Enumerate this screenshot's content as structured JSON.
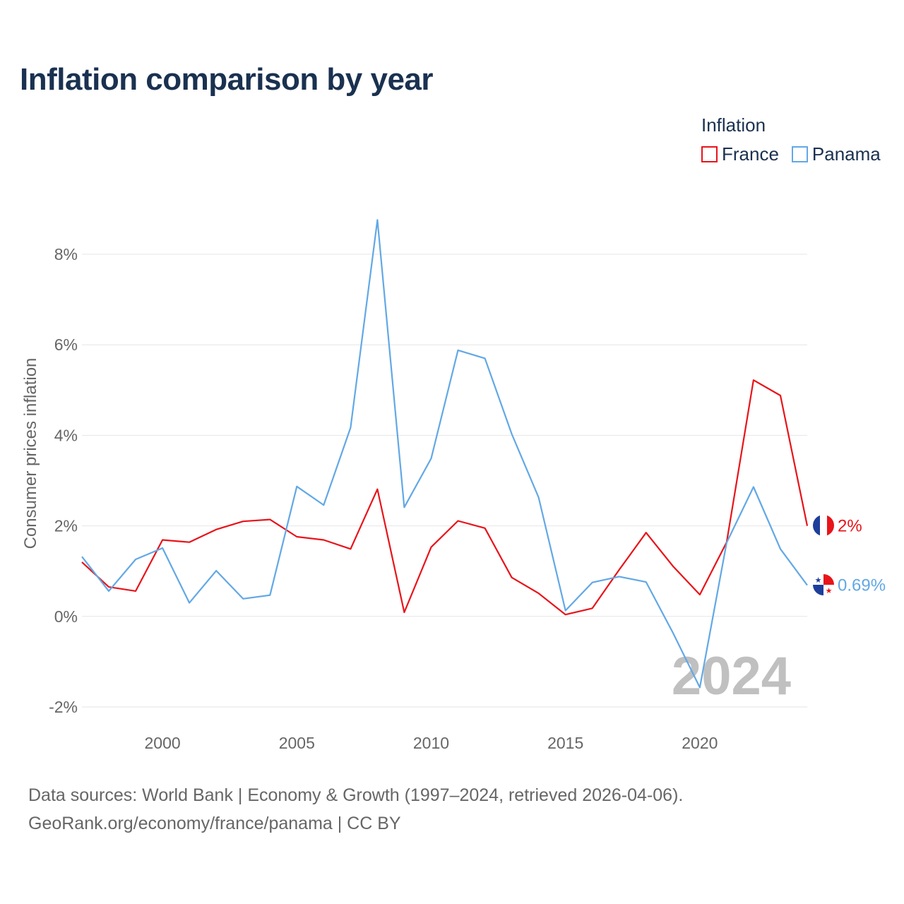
{
  "title": "Inflation comparison by year",
  "legend": {
    "title": "Inflation",
    "items": [
      {
        "label": "France",
        "color": "#e8141a"
      },
      {
        "label": "Panama",
        "color": "#62a8e5"
      }
    ]
  },
  "footer": {
    "line1": "Data sources: World Bank | Economy & Growth (1997–2024, retrieved 2026-04-06).",
    "line2": "GeoRank.org/economy/france/panama | CC BY"
  },
  "chart_data": {
    "type": "line",
    "title": "Inflation comparison by year",
    "xlabel": "",
    "ylabel": "Consumer prices inflation",
    "xlim": [
      1997,
      2024
    ],
    "ylim": [
      -2,
      8
    ],
    "x_ticks": [
      2000,
      2005,
      2010,
      2015,
      2020
    ],
    "y_ticks": [
      -2,
      0,
      2,
      4,
      6,
      8
    ],
    "y_tick_labels": [
      "-2%",
      "0%",
      "2%",
      "4%",
      "6%",
      "8%"
    ],
    "grid": true,
    "watermark": "2024",
    "x": [
      1997,
      1998,
      1999,
      2000,
      2001,
      2002,
      2003,
      2004,
      2005,
      2006,
      2007,
      2008,
      2009,
      2010,
      2011,
      2012,
      2013,
      2014,
      2015,
      2016,
      2017,
      2018,
      2019,
      2020,
      2021,
      2022,
      2023,
      2024
    ],
    "series": [
      {
        "name": "France",
        "color": "#e8141a",
        "end_label": "2%",
        "values": [
          1.2,
          0.65,
          0.56,
          1.69,
          1.64,
          1.92,
          2.1,
          2.14,
          1.76,
          1.69,
          1.49,
          2.81,
          0.09,
          1.53,
          2.11,
          1.95,
          0.86,
          0.51,
          0.04,
          0.18,
          1.03,
          1.85,
          1.11,
          0.48,
          1.64,
          5.22,
          4.88,
          2.0
        ]
      },
      {
        "name": "Panama",
        "color": "#62a8e5",
        "end_label": "0.69%",
        "values": [
          1.32,
          0.56,
          1.26,
          1.51,
          0.3,
          1.01,
          0.39,
          0.47,
          2.87,
          2.46,
          4.17,
          8.76,
          2.41,
          3.49,
          5.88,
          5.7,
          4.03,
          2.63,
          0.13,
          0.75,
          0.88,
          0.76,
          -0.36,
          -1.57,
          1.63,
          2.86,
          1.49,
          0.69
        ]
      }
    ]
  }
}
